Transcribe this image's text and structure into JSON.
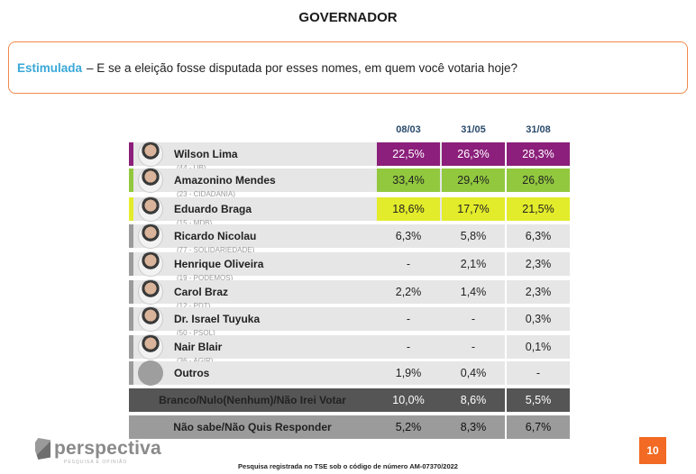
{
  "title": "GOVERNADOR",
  "question": {
    "label": "Estimulada",
    "text": "– E se a eleição fosse disputada por esses nomes, em quem você votaria hoje?"
  },
  "colors": {
    "purple": "#8b1f7b",
    "green": "#92c83e",
    "yellow": "#e3ec2a",
    "grey_cell": "#e6e6e6",
    "dark_row": "#555555",
    "mid_row": "#9b9b9b",
    "accent": "#f26a23"
  },
  "chart_data": {
    "type": "table",
    "columns": [
      "08/03",
      "31/05",
      "31/08"
    ],
    "rows": [
      {
        "name": "Wilson Lima",
        "party": "(44 - UB)",
        "values": [
          "22,5%",
          "26,3%",
          "28,3%"
        ],
        "highlight": "purple"
      },
      {
        "name": "Amazonino Mendes",
        "party": "(23 - CIDADANIA)",
        "values": [
          "33,4%",
          "29,4%",
          "26,8%"
        ],
        "highlight": "green"
      },
      {
        "name": "Eduardo Braga",
        "party": "(15 - MDB)",
        "values": [
          "18,6%",
          "17,7%",
          "21,5%"
        ],
        "highlight": "yellow"
      },
      {
        "name": "Ricardo Nicolau",
        "party": "(77 - SOLIDARIEDADE)",
        "values": [
          "6,3%",
          "5,8%",
          "6,3%"
        ]
      },
      {
        "name": "Henrique Oliveira",
        "party": "(19 - PODEMOS)",
        "values": [
          "-",
          "2,1%",
          "2,3%"
        ]
      },
      {
        "name": "Carol Braz",
        "party": "(12 - PDT)",
        "values": [
          "2,2%",
          "1,4%",
          "2,3%"
        ]
      },
      {
        "name": "Dr. Israel Tuyuka",
        "party": "(50 - PSOL)",
        "values": [
          "-",
          "-",
          "0,3%"
        ]
      },
      {
        "name": "Nair Blair",
        "party": "(36 - AGIR)",
        "values": [
          "-",
          "-",
          "0,1%"
        ]
      },
      {
        "name": "Outros",
        "party": "",
        "values": [
          "1,9%",
          "0,4%",
          "-"
        ]
      },
      {
        "name": "Branco/Nulo(Nenhum)/Não Irei Votar",
        "party": "",
        "values": [
          "10,0%",
          "8,6%",
          "5,5%"
        ],
        "style": "dark"
      },
      {
        "name": "Não sabe/Não Quis Responder",
        "party": "",
        "values": [
          "5,2%",
          "8,3%",
          "6,7%"
        ],
        "style": "mid"
      }
    ]
  },
  "logo": {
    "word": "perspectiva",
    "sub": "PESQUISA E OPINIÃO"
  },
  "footer": "Pesquisa registrada no TSE sob o código de número AM-07370/2022",
  "page_number": "10"
}
